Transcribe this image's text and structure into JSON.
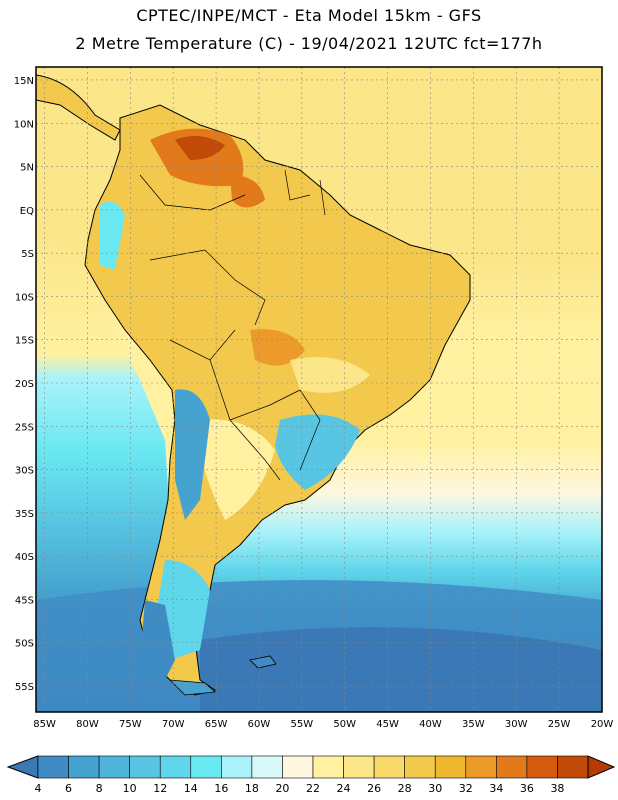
{
  "header": {
    "line1": "CPTEC/INPE/MCT -  Eta Model 15km - GFS",
    "line2": "2 Metre Temperature (C) - 19/04/2021 12UTC fct=177h"
  },
  "map": {
    "lon_range": [
      -86,
      -20
    ],
    "lat_range": [
      -58,
      16.5
    ],
    "lat_ticks": [
      "15N",
      "10N",
      "5N",
      "EQ",
      "5S",
      "10S",
      "15S",
      "20S",
      "25S",
      "30S",
      "35S",
      "40S",
      "45S",
      "50S",
      "55S"
    ],
    "lon_ticks": [
      "85W",
      "80W",
      "75W",
      "70W",
      "65W",
      "60W",
      "55W",
      "50W",
      "45W",
      "40W",
      "35W",
      "30W",
      "25W",
      "20W"
    ],
    "lat_values": [
      15,
      10,
      5,
      0,
      -5,
      -10,
      -15,
      -20,
      -25,
      -30,
      -35,
      -40,
      -45,
      -50,
      -55
    ],
    "lon_values": [
      -85,
      -80,
      -75,
      -70,
      -65,
      -60,
      -55,
      -50,
      -45,
      -40,
      -35,
      -30,
      -25,
      -20
    ]
  },
  "colorbar": {
    "labels": [
      "4",
      "6",
      "8",
      "10",
      "12",
      "14",
      "16",
      "18",
      "20",
      "22",
      "24",
      "26",
      "28",
      "30",
      "32",
      "34",
      "36",
      "38"
    ],
    "colors": [
      "#3a78b6",
      "#3f8cc4",
      "#46a3d0",
      "#4fb5da",
      "#58c6e2",
      "#5fd6ea",
      "#6ae8f2",
      "#a9f2fa",
      "#d8f8fa",
      "#fff7e0",
      "#fff1a0",
      "#fce68a",
      "#f8d96a",
      "#f2c94c",
      "#f0b82e",
      "#ec9a2a",
      "#e27a1c",
      "#d65a0e",
      "#c24a08",
      "#b63a05"
    ]
  }
}
